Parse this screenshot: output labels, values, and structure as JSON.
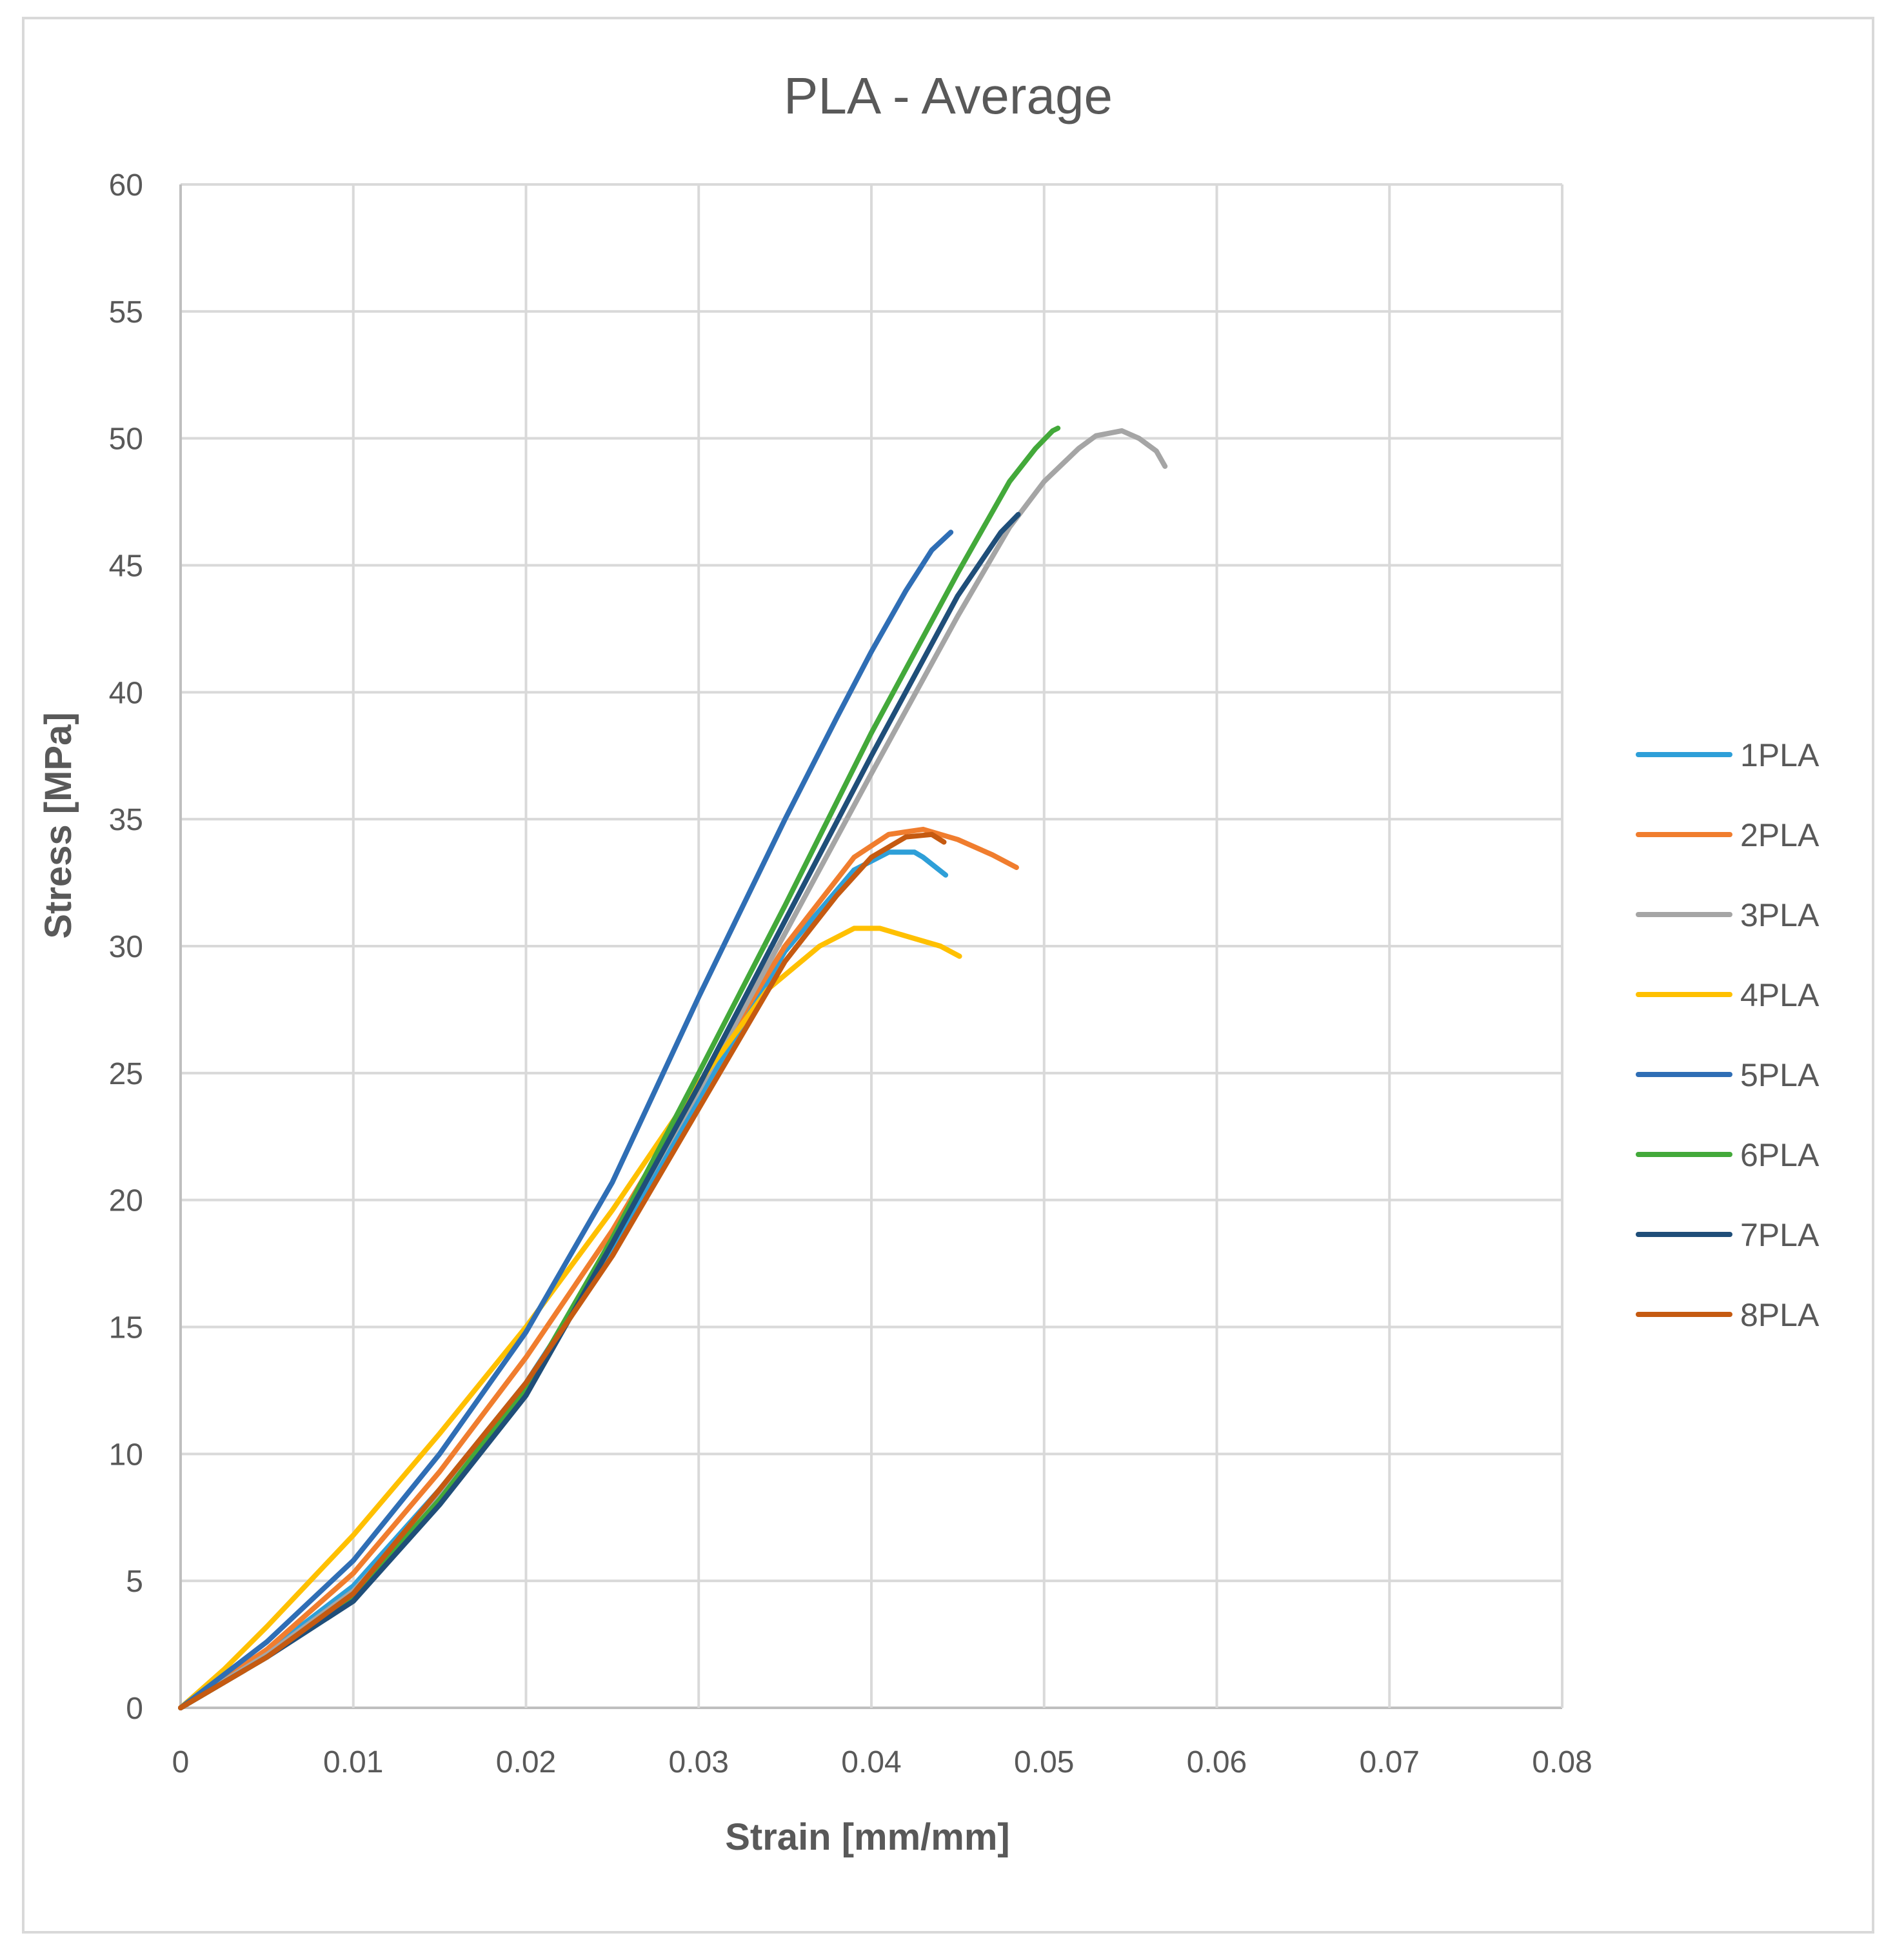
{
  "chart_data": {
    "type": "line",
    "title": "PLA - Average",
    "xlabel": "Strain [mm/mm]",
    "ylabel": "Stress [MPa]",
    "xlim": [
      0,
      0.08
    ],
    "ylim": [
      0,
      60
    ],
    "xticks": [
      0,
      0.01,
      0.02,
      0.03,
      0.04,
      0.05,
      0.06,
      0.07,
      0.08
    ],
    "xtick_labels": [
      "0",
      "0.01",
      "0.02",
      "0.03",
      "0.04",
      "0.05",
      "0.06",
      "0.07",
      "0.08"
    ],
    "yticks": [
      0,
      5,
      10,
      15,
      20,
      25,
      30,
      35,
      40,
      45,
      50,
      55,
      60
    ],
    "ytick_labels": [
      "0",
      "5",
      "10",
      "15",
      "20",
      "25",
      "30",
      "35",
      "40",
      "45",
      "50",
      "55",
      "60"
    ],
    "grid": true,
    "legend_position": "right",
    "series": [
      {
        "name": "1PLA",
        "color": "#2E9FD8",
        "points": [
          [
            0,
            0
          ],
          [
            0.005,
            2.2
          ],
          [
            0.01,
            4.8
          ],
          [
            0.015,
            8.6
          ],
          [
            0.02,
            12.8
          ],
          [
            0.025,
            18.0
          ],
          [
            0.03,
            24.0
          ],
          [
            0.035,
            29.8
          ],
          [
            0.039,
            33.0
          ],
          [
            0.041,
            33.7
          ],
          [
            0.0425,
            33.7
          ],
          [
            0.043,
            33.5
          ],
          [
            0.0443,
            32.8
          ]
        ]
      },
      {
        "name": "2PLA",
        "color": "#F07D2E",
        "points": [
          [
            0,
            0
          ],
          [
            0.005,
            2.3
          ],
          [
            0.01,
            5.3
          ],
          [
            0.015,
            9.3
          ],
          [
            0.02,
            13.8
          ],
          [
            0.025,
            18.8
          ],
          [
            0.03,
            24.5
          ],
          [
            0.035,
            30.0
          ],
          [
            0.039,
            33.5
          ],
          [
            0.041,
            34.4
          ],
          [
            0.043,
            34.6
          ],
          [
            0.045,
            34.2
          ],
          [
            0.047,
            33.6
          ],
          [
            0.0484,
            33.1
          ]
        ]
      },
      {
        "name": "3PLA",
        "color": "#A5A5A5",
        "points": [
          [
            0,
            0
          ],
          [
            0.005,
            2.1
          ],
          [
            0.01,
            4.6
          ],
          [
            0.015,
            8.3
          ],
          [
            0.02,
            12.6
          ],
          [
            0.025,
            18.4
          ],
          [
            0.03,
            24.3
          ],
          [
            0.035,
            30.5
          ],
          [
            0.04,
            36.8
          ],
          [
            0.045,
            43.0
          ],
          [
            0.048,
            46.5
          ],
          [
            0.05,
            48.3
          ],
          [
            0.052,
            49.6
          ],
          [
            0.053,
            50.1
          ],
          [
            0.0545,
            50.3
          ],
          [
            0.0555,
            50.0
          ],
          [
            0.0565,
            49.5
          ],
          [
            0.057,
            48.9
          ]
        ]
      },
      {
        "name": "4PLA",
        "color": "#FFC000",
        "points": [
          [
            0,
            0
          ],
          [
            0.0025,
            1.5
          ],
          [
            0.005,
            3.2
          ],
          [
            0.0075,
            5.0
          ],
          [
            0.01,
            6.8
          ],
          [
            0.015,
            10.8
          ],
          [
            0.02,
            15.0
          ],
          [
            0.025,
            19.6
          ],
          [
            0.03,
            24.6
          ],
          [
            0.034,
            28.3
          ],
          [
            0.037,
            30.0
          ],
          [
            0.039,
            30.7
          ],
          [
            0.0405,
            30.7
          ],
          [
            0.042,
            30.4
          ],
          [
            0.044,
            30.0
          ],
          [
            0.0451,
            29.6
          ]
        ]
      },
      {
        "name": "5PLA",
        "color": "#2F6EB5",
        "points": [
          [
            0,
            0
          ],
          [
            0.005,
            2.6
          ],
          [
            0.01,
            5.8
          ],
          [
            0.015,
            10.0
          ],
          [
            0.02,
            14.8
          ],
          [
            0.025,
            20.7
          ],
          [
            0.03,
            28.0
          ],
          [
            0.035,
            35.0
          ],
          [
            0.038,
            39.0
          ],
          [
            0.04,
            41.6
          ],
          [
            0.042,
            44.0
          ],
          [
            0.0435,
            45.6
          ],
          [
            0.0446,
            46.3
          ]
        ]
      },
      {
        "name": "6PLA",
        "color": "#43A93A",
        "points": [
          [
            0,
            0
          ],
          [
            0.005,
            2.0
          ],
          [
            0.01,
            4.4
          ],
          [
            0.015,
            8.2
          ],
          [
            0.02,
            12.6
          ],
          [
            0.025,
            18.5
          ],
          [
            0.03,
            25.0
          ],
          [
            0.035,
            31.6
          ],
          [
            0.04,
            38.4
          ],
          [
            0.045,
            44.7
          ],
          [
            0.048,
            48.3
          ],
          [
            0.0495,
            49.6
          ],
          [
            0.0505,
            50.3
          ],
          [
            0.0508,
            50.4
          ]
        ]
      },
      {
        "name": "7PLA",
        "color": "#1F4E79",
        "points": [
          [
            0,
            0
          ],
          [
            0.005,
            2.0
          ],
          [
            0.01,
            4.2
          ],
          [
            0.015,
            8.0
          ],
          [
            0.02,
            12.3
          ],
          [
            0.025,
            18.3
          ],
          [
            0.03,
            24.5
          ],
          [
            0.035,
            31.0
          ],
          [
            0.04,
            37.5
          ],
          [
            0.045,
            43.8
          ],
          [
            0.0475,
            46.3
          ],
          [
            0.0485,
            47.0
          ]
        ]
      },
      {
        "name": "8PLA",
        "color": "#C55A11",
        "points": [
          [
            0,
            0
          ],
          [
            0.005,
            2.0
          ],
          [
            0.01,
            4.5
          ],
          [
            0.015,
            8.6
          ],
          [
            0.02,
            12.8
          ],
          [
            0.025,
            17.8
          ],
          [
            0.03,
            23.6
          ],
          [
            0.035,
            29.4
          ],
          [
            0.038,
            32.0
          ],
          [
            0.04,
            33.5
          ],
          [
            0.042,
            34.3
          ],
          [
            0.0435,
            34.4
          ],
          [
            0.0442,
            34.1
          ]
        ]
      }
    ]
  }
}
